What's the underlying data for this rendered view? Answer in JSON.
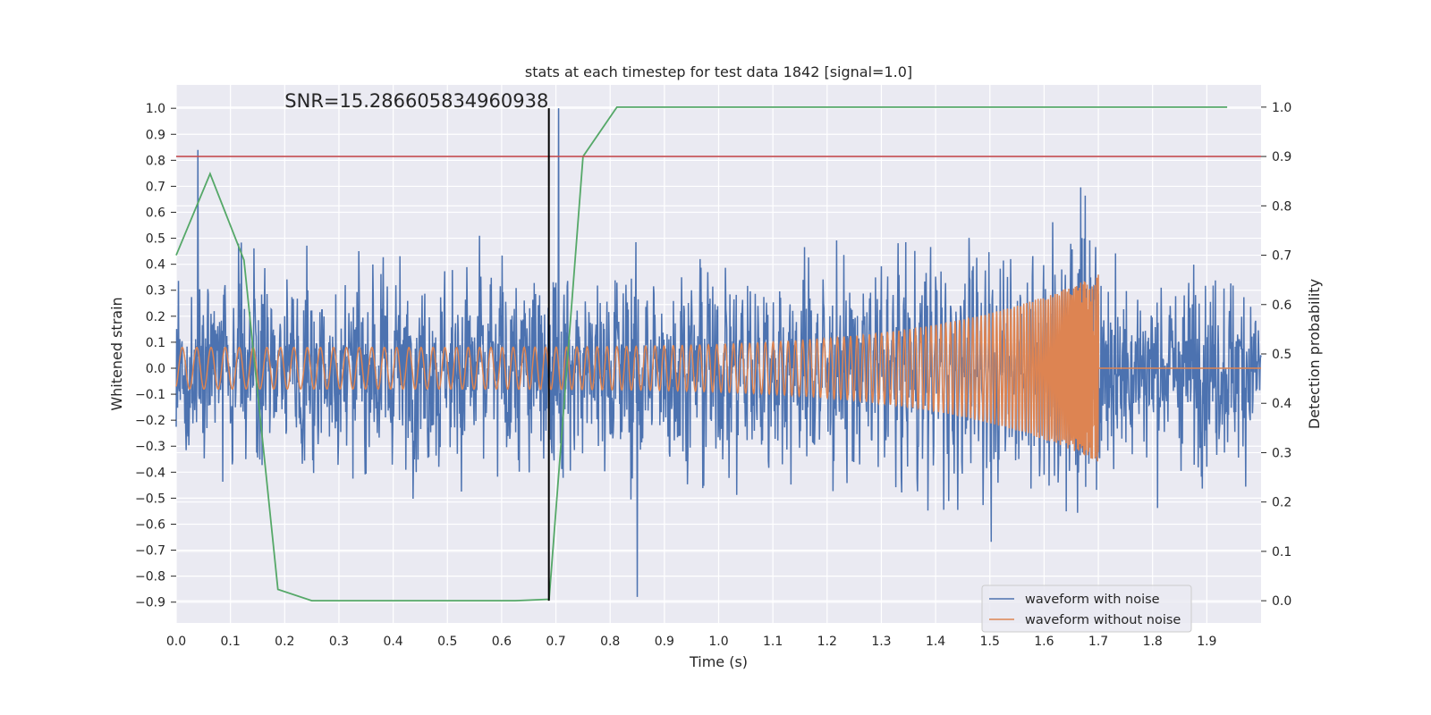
{
  "chart_data": {
    "type": "line",
    "title": "stats at each timestep for test data 1842 [signal=1.0]",
    "xlabel": "Time (s)",
    "ylabel": "Whitened strain",
    "y2label": "Detection probability",
    "xlim": [
      0.0,
      2.0
    ],
    "ylim": [
      -0.98,
      1.09
    ],
    "y2lim": [
      -0.045,
      1.045
    ],
    "xticks": [
      "0.0",
      "0.1",
      "0.2",
      "0.3",
      "0.4",
      "0.5",
      "0.6",
      "0.7",
      "0.8",
      "0.9",
      "1.0",
      "1.1",
      "1.2",
      "1.3",
      "1.4",
      "1.5",
      "1.6",
      "1.7",
      "1.8",
      "1.9"
    ],
    "yticks": [
      "1.0",
      "0.9",
      "0.8",
      "0.7",
      "0.6",
      "0.5",
      "0.4",
      "0.3",
      "0.2",
      "0.1",
      "0.0",
      "−0.1",
      "−0.2",
      "−0.3",
      "−0.4",
      "−0.5",
      "−0.6",
      "−0.7",
      "−0.8",
      "−0.9"
    ],
    "y2ticks": [
      "1.0",
      "0.9",
      "0.8",
      "0.7",
      "0.6",
      "0.5",
      "0.4",
      "0.3",
      "0.2",
      "0.1",
      "0.0"
    ],
    "grid": true,
    "legend_position": "bottom-right",
    "annotation": "SNR=15.286605834960938",
    "threshold_line": {
      "axis": "right",
      "y": 0.9,
      "color": "#c44e52"
    },
    "vertical_line": {
      "x": 0.687,
      "color": "#000000"
    },
    "series": [
      {
        "name": "waveform with noise",
        "axis": "left",
        "color": "#4c72b0",
        "description": "noisy whitened strain, roughly ±0.5 with spikes to 0.84 (x≈0.04) and 1.0 (x≈0.705), lows near −0.88 (x≈0.85)"
      },
      {
        "name": "waveform without noise",
        "axis": "left",
        "color": "#dd8452",
        "description": "chirp with amplitude growing from ~0.08 to ~0.36, ending at x≈1.70 then flat at 0"
      },
      {
        "name": "detection probability",
        "axis": "right",
        "color": "#55a868",
        "x": [
          0.0,
          0.0625,
          0.125,
          0.1875,
          0.25,
          0.3125,
          0.375,
          0.4375,
          0.5,
          0.5625,
          0.625,
          0.6875,
          0.75,
          0.8125,
          0.875,
          0.9375,
          1.0,
          1.0625,
          1.125,
          1.1875,
          1.25,
          1.3125,
          1.375,
          1.4375,
          1.5,
          1.5625,
          1.625,
          1.6875,
          1.75,
          1.8125,
          1.875,
          1.9375
        ],
        "y": [
          0.7,
          0.865,
          0.69,
          0.023,
          0.0,
          0.0,
          0.0,
          0.0,
          0.0,
          0.0,
          0.0,
          0.003,
          0.9,
          1.0,
          1.0,
          1.0,
          1.0,
          1.0,
          1.0,
          1.0,
          1.0,
          1.0,
          1.0,
          1.0,
          1.0,
          1.0,
          1.0,
          1.0,
          1.0,
          1.0,
          1.0,
          1.0
        ]
      }
    ]
  }
}
